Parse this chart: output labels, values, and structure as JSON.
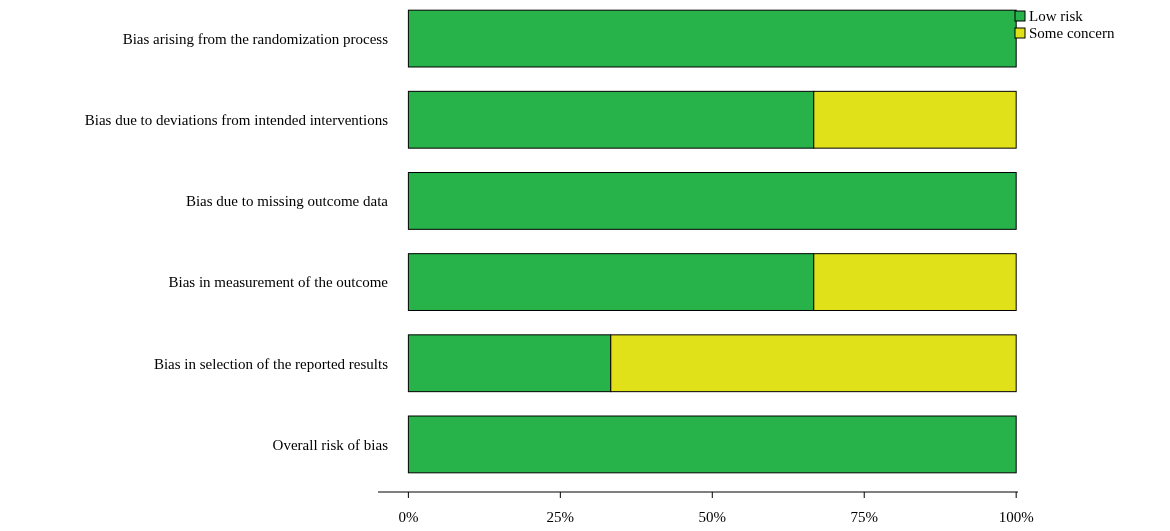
{
  "chart_data": {
    "type": "bar",
    "orientation": "horizontal",
    "stacked": true,
    "categories": [
      "Bias arising from the randomization process",
      "Bias due to deviations from intended interventions",
      "Bias due to missing outcome data",
      "Bias in measurement of the outcome",
      "Bias in selection of the reported results",
      "Overall risk of bias"
    ],
    "series": [
      {
        "name": "Low risk",
        "color": "#27b24a",
        "values": [
          100,
          66.7,
          100,
          66.7,
          33.3,
          100
        ]
      },
      {
        "name": "Some concern",
        "color": "#e1e11a",
        "values": [
          0,
          33.3,
          0,
          33.3,
          66.7,
          0
        ]
      }
    ],
    "xlim": [
      -5,
      100.3
    ],
    "xticks": [
      {
        "value": 0,
        "label": "0%"
      },
      {
        "value": 25,
        "label": "25%"
      },
      {
        "value": 50,
        "label": "50%"
      },
      {
        "value": 75,
        "label": "75%"
      },
      {
        "value": 100,
        "label": "100%"
      }
    ],
    "grid": false,
    "legend": "top right"
  }
}
